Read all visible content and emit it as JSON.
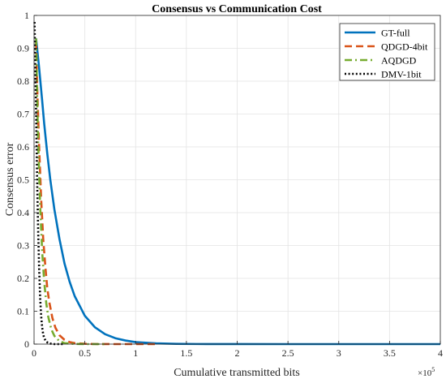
{
  "chart_data": {
    "type": "line",
    "title": "Consensus vs Communication Cost",
    "xlabel": "Cumulative transmitted bits",
    "ylabel": "Consensus error",
    "x_exponent_label": "×10",
    "x_exponent_power": "5",
    "xlim": [
      0,
      4
    ],
    "ylim": [
      0,
      1
    ],
    "x_unit_scale": 100000,
    "xticks": [
      0,
      0.5,
      1,
      1.5,
      2,
      2.5,
      3,
      3.5,
      4
    ],
    "xtick_labels": [
      "0",
      "0.5",
      "1",
      "1.5",
      "2",
      "2.5",
      "3",
      "3.5",
      "4"
    ],
    "yticks": [
      0,
      0.1,
      0.2,
      0.3,
      0.4,
      0.5,
      0.6,
      0.7,
      0.8,
      0.9,
      1
    ],
    "ytick_labels": [
      "0",
      "0.1",
      "0.2",
      "0.3",
      "0.4",
      "0.5",
      "0.6",
      "0.7",
      "0.8",
      "0.9",
      "1"
    ],
    "grid": true,
    "legend_position": "top-right",
    "series": [
      {
        "name": "GT-full",
        "color": "#0072BD",
        "dash": "solid",
        "x": [
          0.02,
          0.05,
          0.08,
          0.1,
          0.13,
          0.16,
          0.2,
          0.25,
          0.3,
          0.35,
          0.4,
          0.5,
          0.6,
          0.7,
          0.8,
          0.9,
          1.0,
          1.2,
          1.4,
          1.6,
          2.0,
          2.5,
          3.0,
          3.5,
          4.0
        ],
        "y": [
          0.93,
          0.84,
          0.74,
          0.67,
          0.58,
          0.5,
          0.41,
          0.32,
          0.245,
          0.19,
          0.146,
          0.086,
          0.051,
          0.03,
          0.018,
          0.011,
          0.006,
          0.0022,
          0.0008,
          0.0003,
          0.0001,
          0,
          0,
          0,
          0
        ]
      },
      {
        "name": "QDGD-4bit",
        "color": "#D95319",
        "dash": "dashed",
        "x": [
          0.02,
          0.03,
          0.05,
          0.07,
          0.09,
          0.11,
          0.13,
          0.15,
          0.18,
          0.21,
          0.25,
          0.3,
          0.35,
          0.4,
          0.5,
          0.6,
          0.8,
          1.0,
          1.2
        ],
        "y": [
          0.92,
          0.79,
          0.6,
          0.44,
          0.32,
          0.24,
          0.17,
          0.128,
          0.08,
          0.05,
          0.027,
          0.013,
          0.006,
          0.003,
          0.001,
          0.0003,
          0,
          0,
          0
        ]
      },
      {
        "name": "AQDGD",
        "color": "#77AC30",
        "dash": "dashdot",
        "x": [
          0.02,
          0.03,
          0.04,
          0.06,
          0.08,
          0.1,
          0.12,
          0.14,
          0.17,
          0.2,
          0.25,
          0.3,
          0.4,
          0.5,
          0.7
        ],
        "y": [
          0.93,
          0.76,
          0.62,
          0.42,
          0.28,
          0.19,
          0.125,
          0.083,
          0.045,
          0.025,
          0.009,
          0.003,
          0.0005,
          0,
          0
        ]
      },
      {
        "name": "DMV-1bit",
        "color": "#000000",
        "dash": "dotted",
        "x": [
          0.005,
          0.012,
          0.02,
          0.03,
          0.04,
          0.05,
          0.06,
          0.07,
          0.08,
          0.09,
          0.1,
          0.12,
          0.15,
          0.2,
          0.3
        ],
        "y": [
          0.98,
          0.85,
          0.7,
          0.5,
          0.35,
          0.23,
          0.14,
          0.085,
          0.05,
          0.03,
          0.018,
          0.007,
          0.002,
          0,
          0
        ]
      }
    ]
  }
}
